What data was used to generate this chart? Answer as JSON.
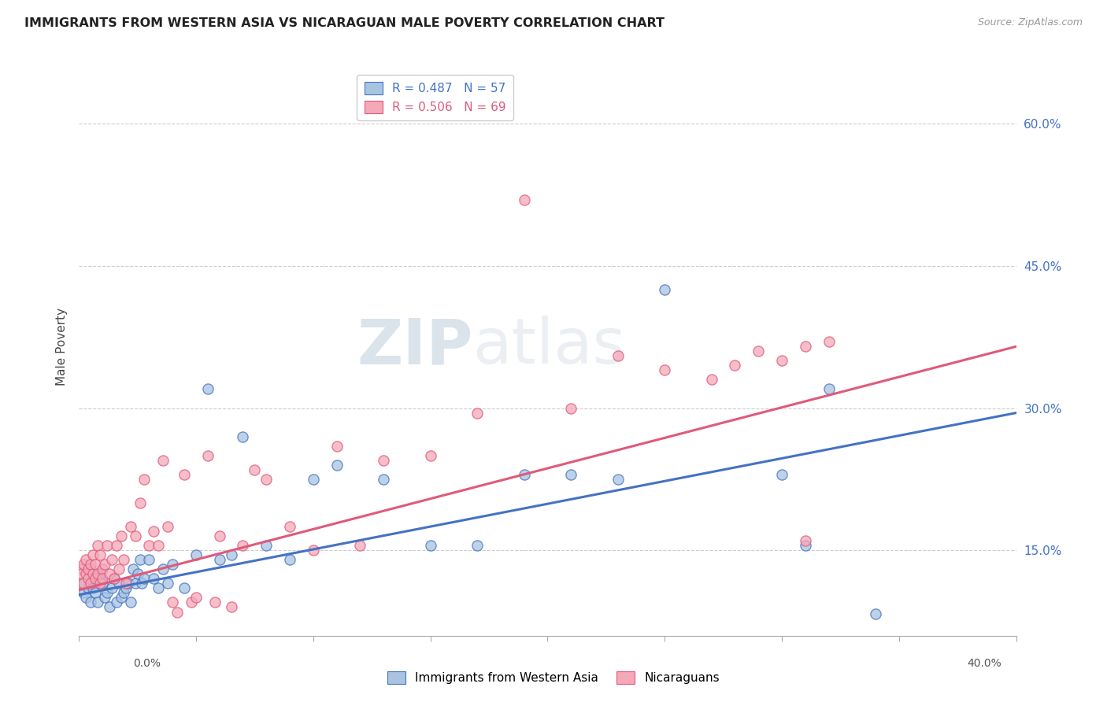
{
  "title": "IMMIGRANTS FROM WESTERN ASIA VS NICARAGUAN MALE POVERTY CORRELATION CHART",
  "source": "Source: ZipAtlas.com",
  "ylabel": "Male Poverty",
  "yticks": [
    "15.0%",
    "30.0%",
    "45.0%",
    "60.0%"
  ],
  "ytick_vals": [
    0.15,
    0.3,
    0.45,
    0.6
  ],
  "xlim": [
    0.0,
    0.4
  ],
  "ylim": [
    0.06,
    0.67
  ],
  "blue_R": "0.487",
  "blue_N": "57",
  "pink_R": "0.506",
  "pink_N": "69",
  "blue_color": "#a8c4e0",
  "pink_color": "#f4a8b8",
  "blue_line_color": "#4472c4",
  "pink_line_color": "#e05a7a",
  "legend_label_blue": "Immigrants from Western Asia",
  "legend_label_pink": "Nicaraguans",
  "watermark_zip": "ZIP",
  "watermark_atlas": "atlas",
  "blue_trendline": [
    0.0,
    0.4,
    0.103,
    0.295
  ],
  "pink_trendline": [
    0.0,
    0.4,
    0.108,
    0.365
  ],
  "blue_scatter_x": [
    0.001,
    0.002,
    0.003,
    0.004,
    0.005,
    0.005,
    0.006,
    0.006,
    0.007,
    0.008,
    0.009,
    0.01,
    0.011,
    0.012,
    0.013,
    0.014,
    0.015,
    0.016,
    0.017,
    0.018,
    0.019,
    0.02,
    0.021,
    0.022,
    0.023,
    0.024,
    0.025,
    0.026,
    0.027,
    0.028,
    0.03,
    0.032,
    0.034,
    0.036,
    0.038,
    0.04,
    0.045,
    0.05,
    0.055,
    0.06,
    0.065,
    0.07,
    0.08,
    0.09,
    0.1,
    0.11,
    0.13,
    0.15,
    0.17,
    0.19,
    0.21,
    0.23,
    0.25,
    0.3,
    0.31,
    0.32,
    0.34
  ],
  "blue_scatter_y": [
    0.115,
    0.105,
    0.1,
    0.11,
    0.095,
    0.13,
    0.11,
    0.12,
    0.105,
    0.095,
    0.125,
    0.115,
    0.1,
    0.105,
    0.09,
    0.11,
    0.12,
    0.095,
    0.115,
    0.1,
    0.105,
    0.11,
    0.115,
    0.095,
    0.13,
    0.115,
    0.125,
    0.14,
    0.115,
    0.12,
    0.14,
    0.12,
    0.11,
    0.13,
    0.115,
    0.135,
    0.11,
    0.145,
    0.32,
    0.14,
    0.145,
    0.27,
    0.155,
    0.14,
    0.225,
    0.24,
    0.225,
    0.155,
    0.155,
    0.23,
    0.23,
    0.225,
    0.425,
    0.23,
    0.155,
    0.32,
    0.083
  ],
  "pink_scatter_x": [
    0.001,
    0.001,
    0.002,
    0.002,
    0.003,
    0.003,
    0.004,
    0.004,
    0.005,
    0.005,
    0.006,
    0.006,
    0.007,
    0.007,
    0.008,
    0.008,
    0.009,
    0.009,
    0.01,
    0.01,
    0.011,
    0.012,
    0.013,
    0.014,
    0.015,
    0.016,
    0.017,
    0.018,
    0.019,
    0.02,
    0.022,
    0.024,
    0.026,
    0.028,
    0.03,
    0.032,
    0.034,
    0.036,
    0.038,
    0.04,
    0.042,
    0.045,
    0.048,
    0.05,
    0.055,
    0.058,
    0.06,
    0.065,
    0.07,
    0.075,
    0.08,
    0.09,
    0.1,
    0.11,
    0.12,
    0.13,
    0.15,
    0.17,
    0.19,
    0.21,
    0.23,
    0.25,
    0.27,
    0.28,
    0.29,
    0.3,
    0.31,
    0.32,
    0.31
  ],
  "pink_scatter_y": [
    0.13,
    0.125,
    0.115,
    0.135,
    0.125,
    0.14,
    0.12,
    0.13,
    0.115,
    0.135,
    0.125,
    0.145,
    0.12,
    0.135,
    0.125,
    0.155,
    0.115,
    0.145,
    0.13,
    0.12,
    0.135,
    0.155,
    0.125,
    0.14,
    0.12,
    0.155,
    0.13,
    0.165,
    0.14,
    0.115,
    0.175,
    0.165,
    0.2,
    0.225,
    0.155,
    0.17,
    0.155,
    0.245,
    0.175,
    0.095,
    0.085,
    0.23,
    0.095,
    0.1,
    0.25,
    0.095,
    0.165,
    0.09,
    0.155,
    0.235,
    0.225,
    0.175,
    0.15,
    0.26,
    0.155,
    0.245,
    0.25,
    0.295,
    0.52,
    0.3,
    0.355,
    0.34,
    0.33,
    0.345,
    0.36,
    0.35,
    0.365,
    0.37,
    0.16
  ]
}
